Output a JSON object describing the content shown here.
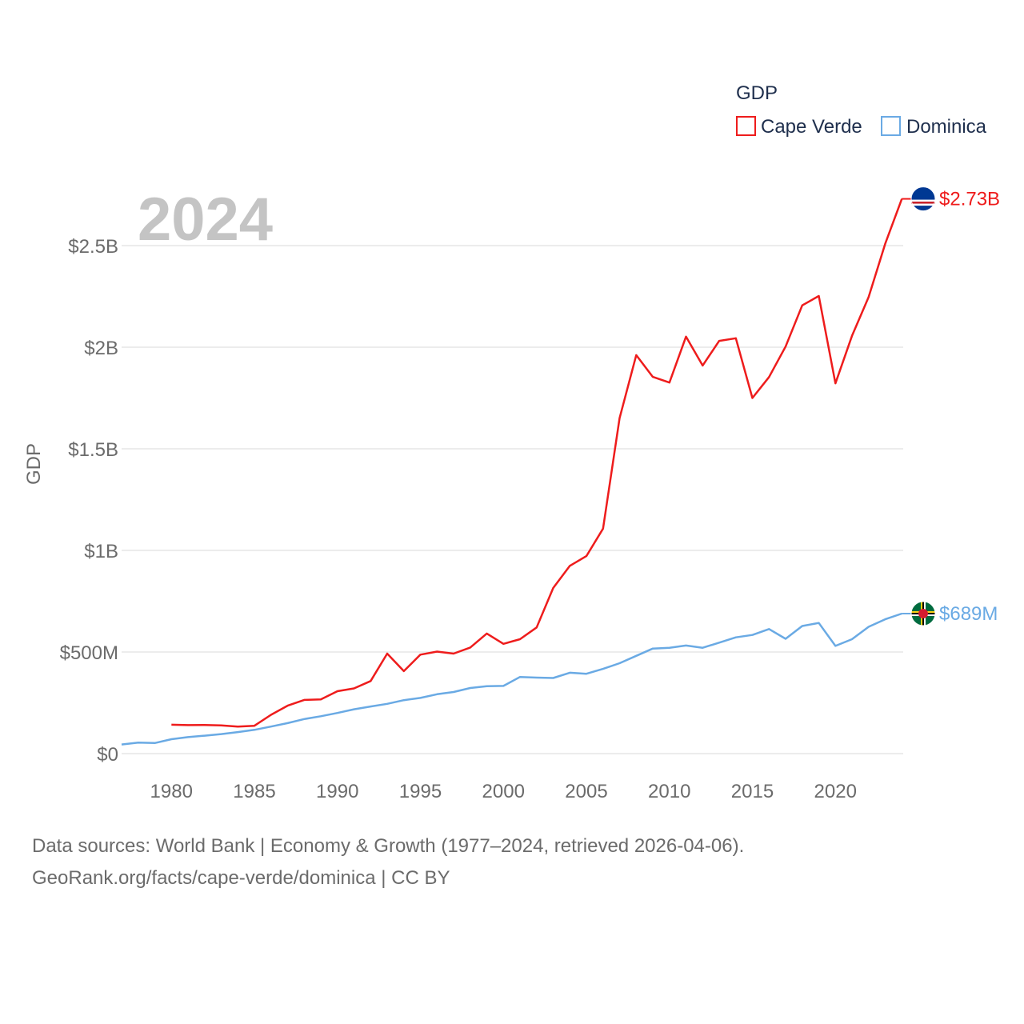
{
  "chart_data": {
    "type": "line",
    "year_label": "2024",
    "ylabel": "GDP",
    "xlabel": "",
    "legend": {
      "title": "GDP",
      "entries": [
        "Cape Verde",
        "Dominica"
      ],
      "placement": "top-right"
    },
    "ylim": [
      0,
      2900000000
    ],
    "y_ticks": [
      {
        "value": 0,
        "label": "$0"
      },
      {
        "value": 500000000,
        "label": "$500M"
      },
      {
        "value": 1000000000,
        "label": "$1B"
      },
      {
        "value": 1500000000,
        "label": "$1.5B"
      },
      {
        "value": 2000000000,
        "label": "$2B"
      },
      {
        "value": 2500000000,
        "label": "$2.5B"
      }
    ],
    "xlim": [
      1977,
      2024
    ],
    "x_ticks": [
      {
        "value": 1980,
        "label": "1980"
      },
      {
        "value": 1985,
        "label": "1985"
      },
      {
        "value": 1990,
        "label": "1990"
      },
      {
        "value": 1995,
        "label": "1995"
      },
      {
        "value": 2000,
        "label": "2000"
      },
      {
        "value": 2005,
        "label": "2005"
      },
      {
        "value": 2010,
        "label": "2010"
      },
      {
        "value": 2015,
        "label": "2015"
      },
      {
        "value": 2020,
        "label": "2020"
      }
    ],
    "series": [
      {
        "name": "Cape Verde",
        "color": "#ee1c1c",
        "end_label": "$2.73B",
        "flag": "cape-verde-flag-icon",
        "x": [
          1980,
          1981,
          1982,
          1983,
          1984,
          1985,
          1986,
          1987,
          1988,
          1989,
          1990,
          1991,
          1992,
          1993,
          1994,
          1995,
          1996,
          1997,
          1998,
          1999,
          2000,
          2001,
          2002,
          2003,
          2004,
          2005,
          2006,
          2007,
          2008,
          2009,
          2010,
          2011,
          2012,
          2013,
          2014,
          2015,
          2016,
          2017,
          2018,
          2019,
          2020,
          2021,
          2022,
          2023,
          2024
        ],
        "values": [
          142000000,
          140000000,
          141000000,
          139000000,
          133000000,
          137000000,
          191000000,
          236000000,
          264000000,
          267000000,
          307000000,
          321000000,
          357000000,
          492000000,
          406000000,
          487000000,
          502000000,
          492000000,
          522000000,
          591000000,
          540000000,
          563000000,
          621000000,
          815000000,
          924000000,
          972000000,
          1107000000,
          1651000000,
          1961000000,
          1854000000,
          1826000000,
          2052000000,
          1910000000,
          2031000000,
          2044000000,
          1750000000,
          1853000000,
          2003000000,
          2206000000,
          2252000000,
          1822000000,
          2056000000,
          2247000000,
          2509000000,
          2730000000
        ]
      },
      {
        "name": "Dominica",
        "color": "#6aaae4",
        "end_label": "$689M",
        "flag": "dominica-flag-icon",
        "x": [
          1977,
          1978,
          1979,
          1980,
          1981,
          1982,
          1983,
          1984,
          1985,
          1986,
          1987,
          1988,
          1989,
          1990,
          1991,
          1992,
          1993,
          1994,
          1995,
          1996,
          1997,
          1998,
          1999,
          2000,
          2001,
          2002,
          2003,
          2004,
          2005,
          2006,
          2007,
          2008,
          2009,
          2010,
          2011,
          2012,
          2013,
          2014,
          2015,
          2016,
          2017,
          2018,
          2019,
          2020,
          2021,
          2022,
          2023,
          2024
        ],
        "values": [
          45000000,
          54000000,
          52000000,
          71000000,
          81000000,
          88000000,
          96000000,
          106000000,
          117000000,
          133000000,
          150000000,
          170000000,
          184000000,
          200000000,
          218000000,
          232000000,
          245000000,
          263000000,
          274000000,
          292000000,
          303000000,
          323000000,
          332000000,
          333000000,
          377000000,
          374000000,
          372000000,
          398000000,
          393000000,
          417000000,
          445000000,
          481000000,
          517000000,
          521000000,
          532000000,
          521000000,
          546000000,
          572000000,
          584000000,
          613000000,
          565000000,
          628000000,
          643000000,
          530000000,
          563000000,
          624000000,
          661000000,
          689000000
        ]
      }
    ]
  },
  "footer": {
    "line1": "Data sources: World Bank | Economy & Growth (1977–2024, retrieved 2026-04-06).",
    "line2": "GeoRank.org/facts/cape-verde/dominica | CC BY"
  }
}
